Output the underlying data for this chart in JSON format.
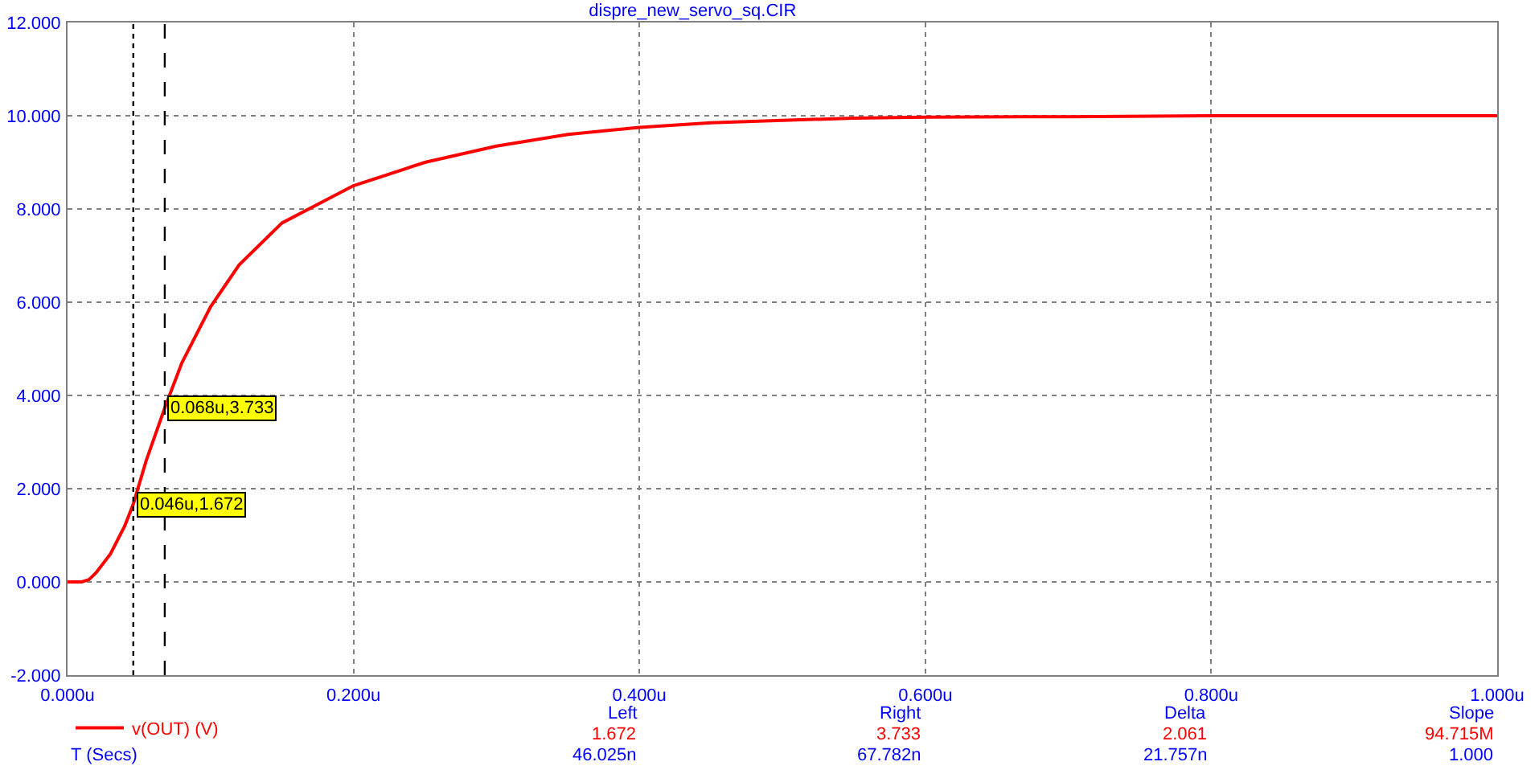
{
  "chart_data": {
    "type": "line",
    "title": "dispre_new_servo_sq.CIR",
    "xlabel": "T (Secs)",
    "x": [
      0,
      0.01,
      0.015,
      0.02,
      0.03,
      0.04,
      0.046,
      0.055,
      0.068,
      0.08,
      0.1,
      0.12,
      0.15,
      0.2,
      0.25,
      0.3,
      0.35,
      0.4,
      0.45,
      0.5,
      0.55,
      0.6,
      0.7,
      0.8,
      0.9,
      1.0
    ],
    "series": [
      {
        "name": "v(OUT) (V)",
        "color": "#ff0000",
        "values": [
          0,
          0,
          0.05,
          0.2,
          0.6,
          1.2,
          1.672,
          2.6,
          3.733,
          4.7,
          5.9,
          6.8,
          7.7,
          8.5,
          9.0,
          9.35,
          9.6,
          9.75,
          9.85,
          9.9,
          9.95,
          9.97,
          9.98,
          10,
          10,
          10
        ]
      }
    ],
    "xlim": [
      0,
      1
    ],
    "ylim": [
      -2,
      12
    ],
    "xticks": [
      {
        "value": 0,
        "label": "0.000u"
      },
      {
        "value": 0.2,
        "label": "0.200u"
      },
      {
        "value": 0.4,
        "label": "0.400u"
      },
      {
        "value": 0.6,
        "label": "0.600u"
      },
      {
        "value": 0.8,
        "label": "0.800u"
      },
      {
        "value": 1,
        "label": "1.000u"
      }
    ],
    "yticks": [
      {
        "value": -2,
        "label": "-2.000"
      },
      {
        "value": 0,
        "label": "0.000"
      },
      {
        "value": 2,
        "label": "2.000"
      },
      {
        "value": 4,
        "label": "4.000"
      },
      {
        "value": 6,
        "label": "6.000"
      },
      {
        "value": 8,
        "label": "8.000"
      },
      {
        "value": 10,
        "label": "10.000"
      },
      {
        "value": 12,
        "label": "12.000"
      }
    ],
    "ref_lines": [
      {
        "axis": "x",
        "value": 0.046,
        "line_style": "dotted",
        "color": "#000000"
      },
      {
        "axis": "x",
        "value": 0.068,
        "line_style": "dashed",
        "color": "#000000"
      }
    ],
    "annotations": [
      {
        "text": "0.068u,3.733",
        "x": 0.068,
        "y": 3.733
      },
      {
        "text": "0.046u,1.672",
        "x": 0.046,
        "y": 1.672
      },
      "Left",
      "Right",
      "Delta",
      "Slope",
      "1.672",
      "3.733",
      "2.061",
      "94.715M",
      "46.025n",
      "67.782n",
      "21.757n",
      "1.000"
    ],
    "grid": true,
    "legend": "bottom left",
    "marker": "none",
    "line_style": "solid"
  }
}
